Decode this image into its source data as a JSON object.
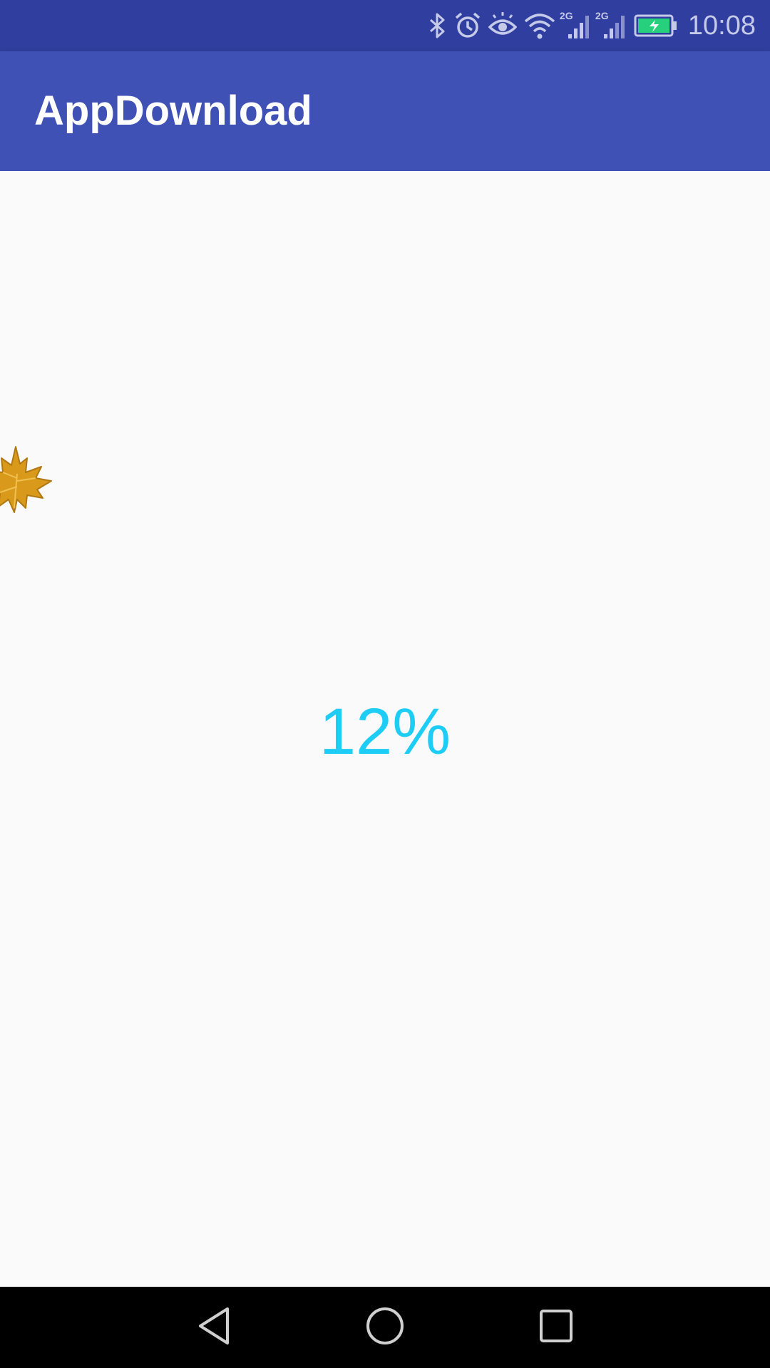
{
  "status_bar": {
    "time": "10:08",
    "network_label_1": "2G",
    "network_label_2": "2G",
    "icons": [
      "bluetooth-icon",
      "alarm-icon",
      "eye-icon",
      "wifi-icon",
      "signal-icon",
      "signal-icon",
      "battery-charging-icon"
    ]
  },
  "app_bar": {
    "title": "AppDownload"
  },
  "main": {
    "progress_label": "12%",
    "progress_percent": 12,
    "decoration_icon": "maple-leaf-icon"
  },
  "nav_bar": {
    "icons": [
      "back-icon",
      "home-icon",
      "recents-icon"
    ]
  },
  "colors": {
    "status_bar": "#303f9f",
    "app_bar": "#3f51b5",
    "progress_text": "#1ecdf5",
    "background": "#fafafa",
    "leaf": "#d99a1c"
  }
}
